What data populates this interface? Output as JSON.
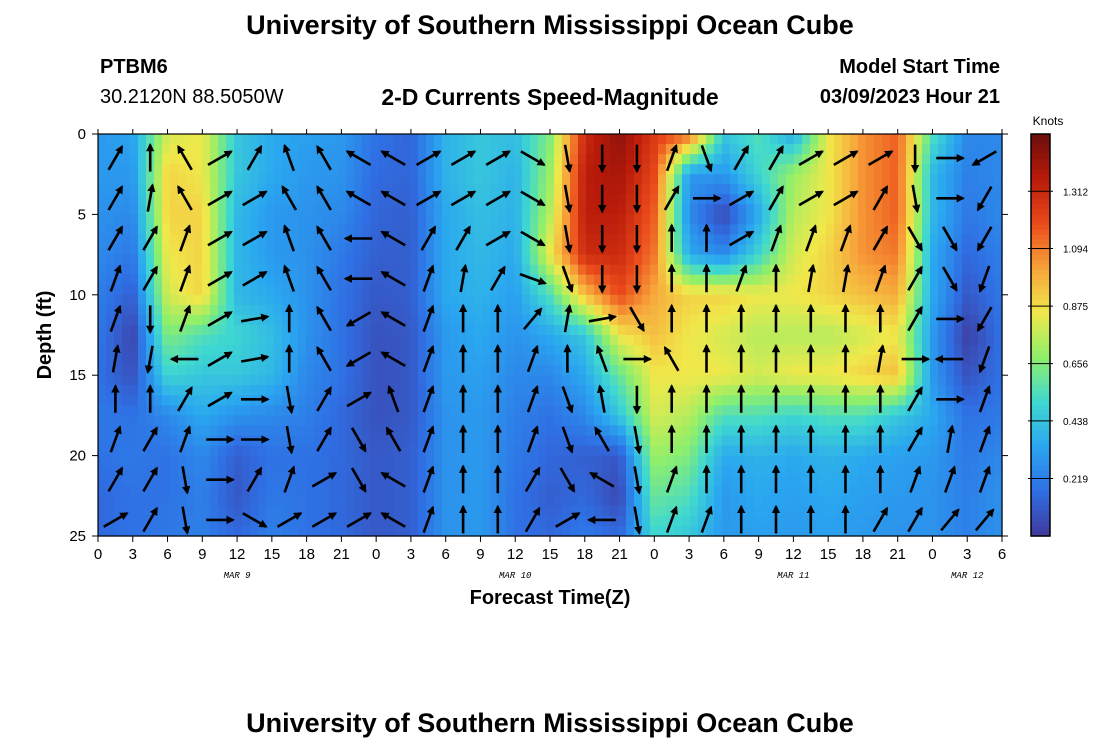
{
  "title": "University of Southern Mississippi Ocean Cube",
  "footer_title": "University of Southern Mississippi Ocean Cube",
  "station": {
    "id": "PTBM6",
    "coords": "30.2120N  88.5050W"
  },
  "model": {
    "start_label": "Model Start Time",
    "start_value": "03/09/2023 Hour 21"
  },
  "chart_data": {
    "type": "heatmap",
    "title": "2-D Currents Speed-Magnitude",
    "xlabel": "Forecast Time(Z)",
    "ylabel": "Depth (ft)",
    "x_ticks": [
      "0",
      "3",
      "6",
      "9",
      "12",
      "15",
      "18",
      "21",
      "0",
      "3",
      "6",
      "9",
      "12",
      "15",
      "18",
      "21",
      "0",
      "3",
      "6",
      "9",
      "12",
      "15",
      "18",
      "21",
      "0",
      "3",
      "6"
    ],
    "x_range_hours": [
      0,
      78
    ],
    "x_tick_step_hours": 3,
    "date_labels": [
      {
        "text": "MAR 9",
        "hour": 12
      },
      {
        "text": "MAR 10",
        "hour": 36
      },
      {
        "text": "MAR 11",
        "hour": 60
      },
      {
        "text": "MAR 12",
        "hour": 75
      }
    ],
    "y_ticks": [
      "0",
      "5",
      "10",
      "15",
      "20",
      "25"
    ],
    "y_range_ft": [
      0,
      25
    ],
    "y_inverted": true,
    "colorbar": {
      "unit": "Knots",
      "ticks": [
        "0.219",
        "0.438",
        "0.656",
        "0.875",
        "1.094",
        "1.312"
      ],
      "range": [
        0,
        1.53
      ],
      "stops": [
        "#40399c",
        "#2f6fe4",
        "#2aa6f0",
        "#3fd8d0",
        "#8fef6a",
        "#f0e84a",
        "#f7a23a",
        "#ea4a1a",
        "#b81a0a",
        "#6a0d0d"
      ]
    },
    "speed_field": {
      "x_hours": [
        0,
        3,
        6,
        9,
        12,
        15,
        18,
        21,
        24,
        27,
        30,
        33,
        36,
        39,
        42,
        45,
        48,
        51,
        54,
        57,
        60,
        63,
        66,
        69,
        72,
        75,
        78
      ],
      "depth_ft": [
        0,
        2.5,
        5,
        7.5,
        10,
        12.5,
        15,
        17.5,
        20,
        22.5,
        25
      ],
      "values": [
        [
          0.3,
          0.33,
          0.8,
          0.85,
          0.45,
          0.35,
          0.32,
          0.3,
          0.18,
          0.14,
          0.38,
          0.45,
          0.42,
          0.65,
          1.3,
          1.45,
          1.25,
          1.15,
          0.45,
          0.55,
          0.35,
          0.85,
          1.05,
          1.15,
          0.55,
          0.25,
          0.25
        ],
        [
          0.3,
          0.3,
          0.9,
          0.85,
          0.45,
          0.35,
          0.3,
          0.28,
          0.16,
          0.14,
          0.38,
          0.45,
          0.38,
          0.7,
          1.35,
          1.4,
          1.2,
          0.3,
          0.3,
          0.5,
          0.7,
          0.85,
          1.05,
          1.15,
          0.4,
          0.22,
          0.25
        ],
        [
          0.28,
          0.25,
          0.9,
          0.9,
          0.4,
          0.3,
          0.28,
          0.25,
          0.14,
          0.12,
          0.35,
          0.42,
          0.38,
          0.75,
          1.35,
          1.35,
          1.15,
          0.25,
          0.05,
          0.35,
          0.75,
          0.85,
          1.05,
          1.15,
          0.4,
          0.2,
          0.25
        ],
        [
          0.25,
          0.2,
          0.85,
          0.9,
          0.4,
          0.3,
          0.28,
          0.2,
          0.12,
          0.12,
          0.35,
          0.4,
          0.35,
          0.85,
          1.3,
          1.3,
          1.1,
          0.35,
          0.25,
          0.5,
          0.8,
          0.9,
          1.05,
          1.1,
          0.35,
          0.15,
          0.22
        ],
        [
          0.22,
          0.12,
          0.8,
          0.9,
          0.4,
          0.35,
          0.28,
          0.18,
          0.1,
          0.12,
          0.35,
          0.38,
          0.32,
          0.55,
          0.95,
          1.2,
          1.0,
          0.9,
          0.9,
          0.85,
          0.85,
          0.9,
          0.95,
          1.0,
          0.35,
          0.1,
          0.2
        ],
        [
          0.2,
          0.04,
          0.65,
          0.55,
          0.5,
          0.42,
          0.28,
          0.18,
          0.08,
          0.1,
          0.3,
          0.35,
          0.28,
          0.35,
          0.45,
          0.85,
          0.95,
          0.85,
          0.8,
          0.75,
          0.75,
          0.75,
          0.8,
          0.85,
          0.3,
          0.02,
          0.18
        ],
        [
          0.18,
          0.08,
          0.5,
          0.45,
          0.45,
          0.4,
          0.25,
          0.18,
          0.08,
          0.1,
          0.3,
          0.32,
          0.25,
          0.25,
          0.35,
          0.6,
          0.85,
          0.85,
          0.85,
          0.8,
          0.85,
          0.85,
          0.9,
          0.95,
          0.3,
          0.08,
          0.18
        ],
        [
          0.2,
          0.18,
          0.25,
          0.35,
          0.28,
          0.25,
          0.22,
          0.15,
          0.08,
          0.1,
          0.28,
          0.3,
          0.22,
          0.18,
          0.25,
          0.45,
          0.8,
          0.75,
          0.55,
          0.55,
          0.5,
          0.55,
          0.55,
          0.45,
          0.35,
          0.18,
          0.2
        ],
        [
          0.18,
          0.2,
          0.18,
          0.25,
          0.12,
          0.18,
          0.18,
          0.15,
          0.1,
          0.12,
          0.28,
          0.3,
          0.2,
          0.15,
          0.12,
          0.1,
          0.7,
          0.65,
          0.35,
          0.38,
          0.35,
          0.38,
          0.35,
          0.32,
          0.3,
          0.2,
          0.25
        ],
        [
          0.15,
          0.18,
          0.18,
          0.22,
          0.1,
          0.2,
          0.18,
          0.15,
          0.1,
          0.12,
          0.28,
          0.3,
          0.18,
          0.12,
          0.15,
          0.05,
          0.6,
          0.55,
          0.3,
          0.35,
          0.32,
          0.35,
          0.32,
          0.3,
          0.28,
          0.22,
          0.28
        ],
        [
          0.15,
          0.18,
          0.2,
          0.22,
          0.15,
          0.22,
          0.18,
          0.15,
          0.1,
          0.12,
          0.28,
          0.3,
          0.18,
          0.15,
          0.2,
          0.15,
          0.5,
          0.45,
          0.3,
          0.32,
          0.3,
          0.32,
          0.3,
          0.28,
          0.28,
          0.22,
          0.28
        ]
      ]
    },
    "vector_field": {
      "x_hours": [
        1.5,
        4.5,
        7.5,
        10.5,
        13.5,
        16.5,
        19.5,
        22.5,
        25.5,
        28.5,
        31.5,
        34.5,
        37.5,
        40.5,
        43.5,
        46.5,
        49.5,
        52.5,
        55.5,
        58.5,
        61.5,
        64.5,
        67.5,
        70.5,
        73.5,
        76.5
      ],
      "depth_ft": [
        1.5,
        4,
        6.5,
        9,
        11.5,
        14,
        16.5,
        19,
        21.5,
        24
      ],
      "directions_deg": [
        [
          30,
          0,
          330,
          60,
          30,
          340,
          330,
          300,
          300,
          60,
          60,
          60,
          120,
          170,
          180,
          180,
          20,
          160,
          30,
          30,
          60,
          60,
          60,
          180,
          90,
          240
        ],
        [
          30,
          10,
          330,
          60,
          60,
          330,
          330,
          300,
          300,
          60,
          60,
          60,
          120,
          170,
          180,
          180,
          30,
          90,
          60,
          30,
          60,
          60,
          30,
          170,
          90,
          210
        ],
        [
          30,
          30,
          20,
          60,
          60,
          340,
          330,
          270,
          300,
          30,
          30,
          60,
          120,
          170,
          180,
          180,
          0,
          0,
          60,
          20,
          20,
          20,
          30,
          150,
          150,
          210
        ],
        [
          20,
          30,
          20,
          60,
          60,
          340,
          330,
          270,
          300,
          20,
          10,
          30,
          110,
          160,
          180,
          180,
          0,
          0,
          20,
          0,
          10,
          10,
          20,
          30,
          150,
          200
        ],
        [
          20,
          180,
          20,
          60,
          80,
          0,
          330,
          240,
          300,
          20,
          0,
          0,
          40,
          10,
          80,
          150,
          0,
          0,
          0,
          0,
          0,
          0,
          0,
          30,
          90,
          210
        ],
        [
          10,
          190,
          270,
          60,
          80,
          0,
          330,
          240,
          300,
          20,
          0,
          0,
          20,
          0,
          340,
          90,
          330,
          0,
          0,
          0,
          0,
          0,
          10,
          90,
          270,
          200
        ],
        [
          0,
          0,
          30,
          60,
          90,
          170,
          30,
          60,
          340,
          20,
          0,
          0,
          20,
          160,
          350,
          180,
          0,
          0,
          0,
          0,
          0,
          0,
          0,
          30,
          90,
          20
        ],
        [
          20,
          30,
          20,
          90,
          90,
          170,
          30,
          150,
          330,
          20,
          0,
          0,
          20,
          160,
          330,
          170,
          0,
          0,
          0,
          0,
          0,
          0,
          0,
          30,
          10,
          20
        ],
        [
          30,
          30,
          170,
          90,
          30,
          20,
          60,
          150,
          300,
          20,
          0,
          0,
          30,
          150,
          300,
          170,
          20,
          0,
          0,
          0,
          0,
          0,
          0,
          20,
          20,
          20
        ],
        [
          60,
          30,
          170,
          90,
          120,
          60,
          60,
          60,
          300,
          20,
          0,
          0,
          30,
          60,
          270,
          170,
          20,
          20,
          0,
          0,
          0,
          0,
          30,
          30,
          40,
          40
        ]
      ]
    }
  }
}
